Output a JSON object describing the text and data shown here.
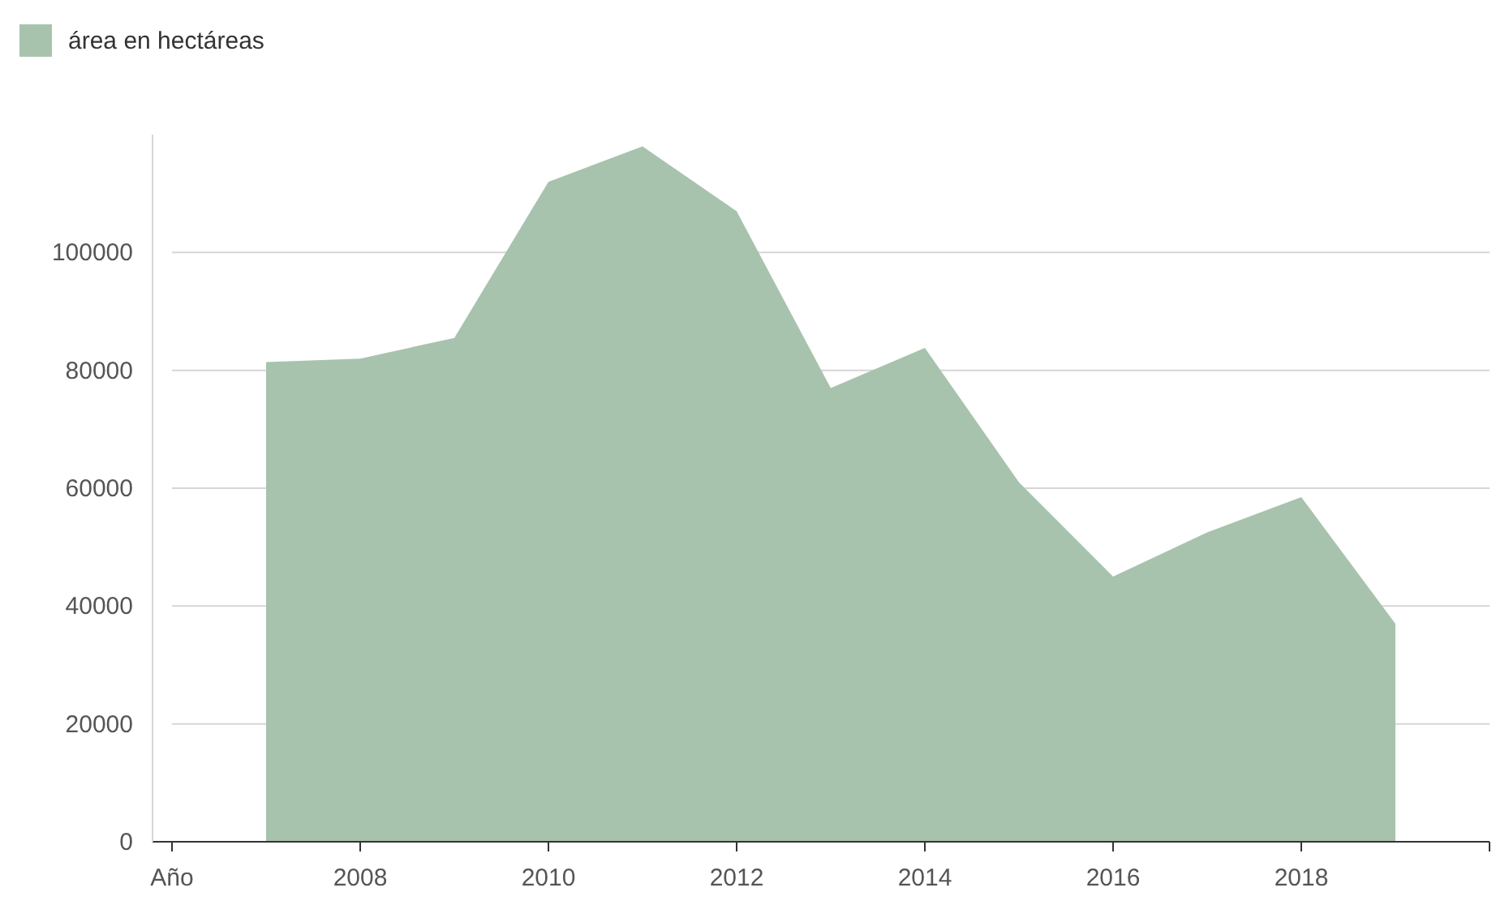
{
  "chart_data": {
    "type": "area",
    "x": [
      2007,
      2008,
      2009,
      2010,
      2011,
      2012,
      2013,
      2014,
      2015,
      2016,
      2017,
      2018,
      2019
    ],
    "series": [
      {
        "name": "área en hectáreas",
        "color": "#a8c3ad",
        "values": [
          81400,
          82000,
          85500,
          112000,
          118000,
          107000,
          77000,
          83800,
          61000,
          45000,
          52500,
          58500,
          37000
        ]
      }
    ],
    "xlim": [
      2006,
      2020
    ],
    "xticks": [
      {
        "value": 2006,
        "label": "Año"
      },
      2008,
      2010,
      2012,
      2014,
      2016,
      2018,
      {
        "value": 2020,
        "label": null
      }
    ],
    "ylim": [
      0,
      120000
    ],
    "yticks": [
      0,
      20000,
      40000,
      60000,
      80000,
      100000
    ],
    "grid": "y",
    "legend": "top left"
  }
}
